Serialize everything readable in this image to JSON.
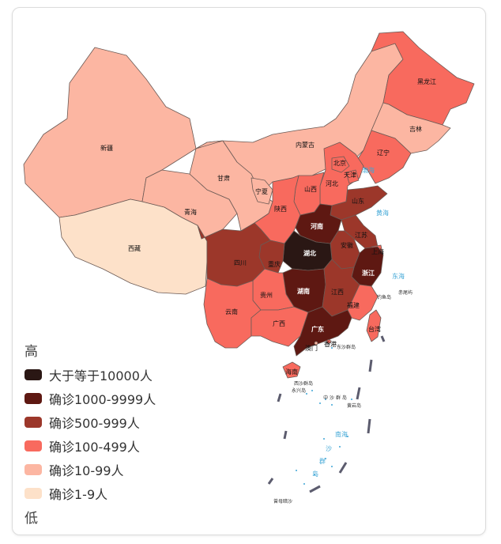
{
  "legend": {
    "high": "高",
    "low": "低",
    "items": [
      {
        "label": "大于等于10000人",
        "color": "#2a1714"
      },
      {
        "label": "确诊1000-9999人",
        "color": "#5e1812"
      },
      {
        "label": "确诊500-999人",
        "color": "#9c372a"
      },
      {
        "label": "确诊100-499人",
        "color": "#f86a5e"
      },
      {
        "label": "确诊10-99人",
        "color": "#fcb6a2"
      },
      {
        "label": "确诊1-9人",
        "color": "#fde1c9"
      }
    ]
  },
  "provinces": {
    "xinjiang": "新疆",
    "xizang": "西藏",
    "qinghai": "青海",
    "gansu": "甘肃",
    "neimenggu": "内蒙古",
    "heilongjiang": "黑龙江",
    "jilin": "吉林",
    "liaoning": "辽宁",
    "beijing": "北京",
    "tianjin": "天津",
    "hebei": "河北",
    "shanxi": "山西",
    "ningxia": "宁夏",
    "shaanxi": "陕西",
    "shandong": "山东",
    "henan": "河南",
    "jiangsu": "江苏",
    "anhui": "安徽",
    "shanghai": "上海",
    "hubei": "湖北",
    "sichuan": "四川",
    "chongqing": "重庆",
    "zhejiang": "浙江",
    "hunan": "湖南",
    "jiangxi": "江西",
    "guizhou": "贵州",
    "yunnan": "云南",
    "guangxi": "广西",
    "guangdong": "广东",
    "fujian": "福建",
    "taiwan": "台湾",
    "hainan": "海南",
    "xianggang": "香港",
    "aomen": "澳门"
  },
  "seas": {
    "bohai": "渤海",
    "huanghai": "黄海",
    "donghai": "东海",
    "nanhai": "南海",
    "nanhai_sha": "沙",
    "nanhai_qun": "群",
    "nanhai_dao": "岛"
  },
  "islands": {
    "diaoyu": "钓鱼岛",
    "chiwei": "赤尾屿",
    "dongsha": "东沙群岛",
    "xisha": "西沙群岛",
    "yongxing": "永兴岛",
    "zhongsha": "中 沙 群 岛",
    "huangyan": "黄岩岛",
    "zengmu": "曾母暗沙"
  }
}
